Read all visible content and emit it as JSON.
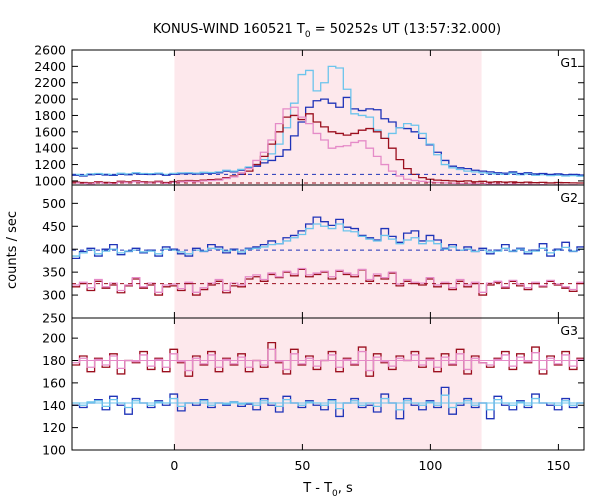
{
  "title": {
    "main": "KONUS-WIND 160521 T",
    "sub": "0",
    "rest": " = 50252s UT (13:57:32.000)"
  },
  "xlabel": {
    "main": "T - T",
    "sub": "0",
    "rest": ", s"
  },
  "ylabel": "counts / sec",
  "colors": {
    "highlight": "#fde8ec",
    "blue": "#1f33b8",
    "lightblue": "#6cc4ec",
    "darkred": "#9b0f1e",
    "pink": "#e58bc8"
  },
  "chart_data": {
    "type": "line",
    "xlim": [
      -40,
      160
    ],
    "xticks": [
      0,
      50,
      100,
      150
    ],
    "highlight_interval": [
      0,
      120
    ],
    "bin_width": 2.944,
    "panels": [
      {
        "name": "G1",
        "ylim": [
          950,
          2600
        ],
        "yticks": [
          1000,
          1200,
          1400,
          1600,
          1800,
          2000,
          2200,
          2400,
          2600
        ],
        "background_levels": {
          "blue": 1080,
          "darkred": 975
        },
        "series": [
          {
            "color": "blue",
            "values": [
              1070,
              1060,
              1075,
              1080,
              1072,
              1068,
              1083,
              1075,
              1090,
              1080,
              1078,
              1085,
              1070,
              1082,
              1088,
              1090,
              1085,
              1095,
              1092,
              1100,
              1120,
              1110,
              1130,
              1160,
              1180,
              1220,
              1250,
              1300,
              1380,
              1550,
              1720,
              1900,
              1980,
              2000,
              1950,
              1900,
              2020,
              1880,
              1860,
              1880,
              1870,
              1760,
              1720,
              1650,
              1640,
              1600,
              1520,
              1440,
              1350,
              1250,
              1180,
              1160,
              1150,
              1130,
              1120,
              1110,
              1100,
              1095,
              1110,
              1090,
              1100,
              1085,
              1090,
              1080,
              1085,
              1075,
              1080,
              1072,
              1078,
              1074,
              1076,
              1070
            ]
          },
          {
            "color": "lightblue",
            "values": [
              1080,
              1070,
              1085,
              1090,
              1082,
              1078,
              1093,
              1085,
              1100,
              1090,
              1088,
              1095,
              1080,
              1092,
              1098,
              1100,
              1095,
              1105,
              1102,
              1110,
              1130,
              1120,
              1140,
              1170,
              1200,
              1260,
              1330,
              1450,
              1650,
              1950,
              2300,
              2350,
              2100,
              2200,
              2400,
              2380,
              2120,
              1820,
              1800,
              1780,
              1620,
              1520,
              1580,
              1650,
              1700,
              1680,
              1580,
              1450,
              1320,
              1200,
              1160,
              1140,
              1120,
              1110,
              1100,
              1090,
              1085,
              1080,
              1095,
              1075,
              1085,
              1070,
              1075,
              1065,
              1070,
              1060,
              1065,
              1058,
              1062,
              1060,
              1062,
              1058
            ]
          },
          {
            "color": "darkred",
            "values": [
              985,
              980,
              975,
              990,
              982,
              978,
              995,
              988,
              1000,
              990,
              985,
              995,
              980,
              992,
              998,
              1005,
              1000,
              1010,
              1015,
              1020,
              1040,
              1060,
              1080,
              1120,
              1200,
              1300,
              1450,
              1600,
              1780,
              1800,
              1750,
              1820,
              1720,
              1660,
              1600,
              1580,
              1560,
              1580,
              1620,
              1640,
              1600,
              1520,
              1400,
              1260,
              1150,
              1080,
              1040,
              1020,
              1010,
              1005,
              1000,
              995,
              1000,
              990,
              995,
              985,
              990,
              985,
              988,
              980,
              985,
              978,
              982,
              975,
              980,
              978,
              976,
              974,
              978,
              976,
              975,
              974
            ]
          },
          {
            "color": "pink",
            "values": [
              975,
              970,
              965,
              980,
              972,
              968,
              985,
              978,
              990,
              980,
              975,
              985,
              970,
              982,
              988,
              995,
              990,
              1000,
              1005,
              1010,
              1030,
              1050,
              1100,
              1150,
              1250,
              1350,
              1500,
              1700,
              1880,
              1900,
              1780,
              1700,
              1580,
              1500,
              1400,
              1420,
              1430,
              1470,
              1490,
              1400,
              1300,
              1200,
              1120,
              1060,
              1020,
              1005,
              995,
              985,
              980,
              975,
              972,
              968,
              970,
              965,
              968,
              960,
              962,
              958,
              960,
              955,
              958,
              952,
              956,
              950,
              953,
              951,
              952,
              950,
              951,
              950,
              951,
              950
            ]
          }
        ]
      },
      {
        "name": "G2",
        "ylim": [
          250,
          540
        ],
        "yticks": [
          250,
          300,
          350,
          400,
          450,
          500
        ],
        "background_levels": {
          "blue": 398,
          "darkred": 325
        },
        "series": [
          {
            "color": "blue",
            "values": [
              380,
              395,
              402,
              385,
              400,
              410,
              388,
              395,
              402,
              392,
              398,
              385,
              405,
              400,
              390,
              385,
              402,
              395,
              410,
              405,
              392,
              400,
              390,
              402,
              405,
              410,
              418,
              412,
              425,
              430,
              440,
              455,
              470,
              460,
              452,
              465,
              448,
              445,
              430,
              425,
              420,
              445,
              428,
              415,
              435,
              440,
              418,
              430,
              420,
              402,
              410,
              398,
              405,
              395,
              402,
              390,
              398,
              410,
              395,
              402,
              390,
              398,
              412,
              385,
              400,
              415,
              395,
              405,
              398,
              400,
              392,
              400
            ]
          },
          {
            "color": "lightblue",
            "values": [
              385,
              392,
              398,
              390,
              396,
              400,
              392,
              396,
              398,
              394,
              396,
              390,
              400,
              398,
              394,
              390,
              398,
              396,
              402,
              400,
              396,
              398,
              394,
              400,
              402,
              405,
              410,
              412,
              418,
              425,
              432,
              445,
              455,
              450,
              445,
              455,
              440,
              438,
              428,
              422,
              418,
              430,
              422,
              412,
              420,
              425,
              412,
              418,
              412,
              400,
              405,
              398,
              400,
              395,
              398,
              394,
              396,
              402,
              396,
              400,
              394,
              396,
              402,
              392,
              398,
              404,
              396,
              400,
              396,
              398,
              394,
              398
            ]
          },
          {
            "color": "darkred",
            "values": [
              318,
              325,
              310,
              330,
              315,
              322,
              305,
              320,
              335,
              315,
              322,
              300,
              318,
              320,
              310,
              325,
              300,
              312,
              322,
              330,
              305,
              320,
              318,
              335,
              340,
              330,
              345,
              338,
              350,
              342,
              356,
              340,
              345,
              350,
              335,
              352,
              345,
              340,
              355,
              330,
              342,
              335,
              348,
              320,
              330,
              325,
              322,
              335,
              318,
              325,
              312,
              330,
              318,
              325,
              300,
              322,
              328,
              315,
              330,
              320,
              312,
              325,
              318,
              330,
              322,
              315,
              308,
              325,
              320,
              318,
              322,
              300
            ]
          },
          {
            "color": "pink",
            "values": [
              322,
              328,
              316,
              334,
              318,
              326,
              310,
              322,
              338,
              318,
              326,
              306,
              322,
              324,
              314,
              328,
              306,
              316,
              326,
              334,
              310,
              326,
              322,
              340,
              344,
              334,
              348,
              340,
              352,
              346,
              358,
              344,
              348,
              352,
              340,
              354,
              348,
              344,
              356,
              334,
              346,
              338,
              350,
              324,
              334,
              328,
              326,
              338,
              322,
              328,
              316,
              334,
              322,
              328,
              306,
              326,
              330,
              318,
              332,
              324,
              316,
              328,
              320,
              332,
              324,
              318,
              312,
              328,
              322,
              320,
              324,
              306
            ]
          }
        ]
      },
      {
        "name": "G3",
        "ylim": [
          100,
          218
        ],
        "yticks": [
          100,
          120,
          140,
          160,
          180,
          200
        ],
        "background_levels": {
          "lightblue": 142,
          "pink": 180
        },
        "series": [
          {
            "color": "blue",
            "values": [
              140,
              138,
              142,
              145,
              136,
              148,
              140,
              132,
              146,
              142,
              138,
              144,
              140,
              150,
              135,
              142,
              140,
              145,
              138,
              142,
              140,
              143,
              139,
              141,
              136,
              146,
              140,
              134,
              148,
              142,
              138,
              144,
              140,
              136,
              145,
              130,
              142,
              146,
              138,
              140,
              134,
              150,
              142,
              128,
              146,
              140,
              136,
              144,
              138,
              156,
              132,
              140,
              146,
              138,
              142,
              128,
              148,
              140,
              136,
              144,
              138,
              150,
              142,
              140,
              136,
              146,
              138,
              142,
              148,
              126,
              144,
              140
            ]
          },
          {
            "color": "lightblue",
            "values": [
              142,
              140,
              143,
              144,
              139,
              145,
              142,
              138,
              144,
              142,
              140,
              143,
              142,
              146,
              139,
              142,
              142,
              144,
              140,
              142,
              141,
              143,
              141,
              142,
              140,
              144,
              142,
              139,
              145,
              142,
              140,
              143,
              142,
              140,
              144,
              137,
              142,
              144,
              140,
              142,
              139,
              146,
              142,
              136,
              144,
              142,
              140,
              143,
              140,
              149,
              138,
              142,
              144,
              140,
              142,
              136,
              145,
              142,
              140,
              143,
              140,
              146,
              142,
              142,
              140,
              144,
              140,
              142,
              145,
              135,
              143,
              142
            ]
          },
          {
            "color": "darkred",
            "values": [
              176,
              184,
              170,
              182,
              174,
              186,
              168,
              180,
              178,
              188,
              172,
              182,
              170,
              190,
              178,
              166,
              184,
              176,
              188,
              170,
              182,
              176,
              186,
              170,
              180,
              174,
              196,
              178,
              168,
              190,
              176,
              184,
              172,
              180,
              188,
              170,
              182,
              176,
              192,
              166,
              186,
              178,
              172,
              184,
              180,
              188,
              174,
              182,
              170,
              186,
              176,
              190,
              168,
              184,
              178,
              174,
              182,
              188,
              172,
              186,
              178,
              192,
              168,
              184,
              176,
              188,
              172,
              182,
              176,
              186,
              170,
              180
            ]
          },
          {
            "color": "pink",
            "values": [
              178,
              182,
              174,
              181,
              176,
              184,
              173,
              180,
              179,
              185,
              175,
              181,
              174,
              186,
              179,
              171,
              182,
              177,
              185,
              174,
              181,
              177,
              183,
              174,
              180,
              176,
              190,
              179,
              172,
              186,
              177,
              182,
              175,
              180,
              185,
              174,
              181,
              177,
              188,
              171,
              183,
              179,
              175,
              182,
              180,
              185,
              176,
              181,
              174,
              183,
              177,
              186,
              172,
              182,
              178,
              176,
              181,
              185,
              175,
              183,
              179,
              187,
              172,
              182,
              177,
              185,
              175,
              181,
              177,
              183,
              174,
              180
            ]
          }
        ]
      }
    ]
  }
}
